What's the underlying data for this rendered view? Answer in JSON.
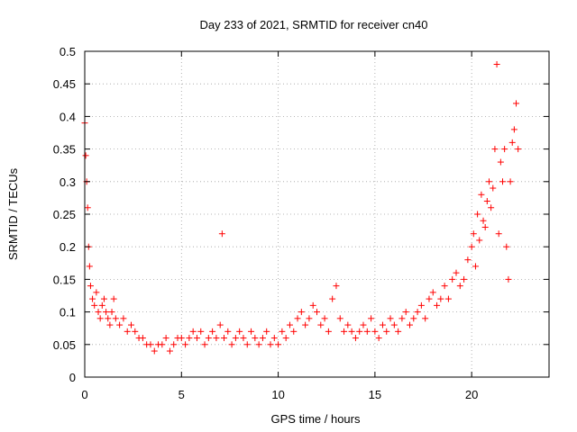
{
  "chart_data": {
    "type": "scatter",
    "title": "Day 233 of 2021, SRMTID for receiver cn40",
    "xlabel": "GPS time / hours",
    "ylabel": "SRMTID / TECUs",
    "xlim": [
      0,
      24
    ],
    "ylim": [
      0,
      0.5
    ],
    "xticks": [
      0,
      5,
      10,
      15,
      20
    ],
    "yticks": [
      0,
      0.05,
      0.1,
      0.15,
      0.2,
      0.25,
      0.3,
      0.35,
      0.4,
      0.45,
      0.5
    ],
    "grid": true,
    "marker": "plus",
    "color": "#ff0000",
    "series": [
      {
        "name": "SRMTID",
        "x": [
          0.0,
          0.05,
          0.1,
          0.15,
          0.2,
          0.25,
          0.3,
          0.4,
          0.5,
          0.6,
          0.7,
          0.8,
          0.9,
          1.0,
          1.1,
          1.2,
          1.3,
          1.4,
          1.5,
          1.6,
          1.8,
          2.0,
          2.2,
          2.4,
          2.6,
          2.8,
          3.0,
          3.2,
          3.4,
          3.6,
          3.8,
          4.0,
          4.2,
          4.4,
          4.6,
          4.8,
          5.0,
          5.2,
          5.4,
          5.6,
          5.8,
          6.0,
          6.2,
          6.4,
          6.6,
          6.8,
          7.0,
          7.1,
          7.2,
          7.4,
          7.6,
          7.8,
          8.0,
          8.2,
          8.4,
          8.6,
          8.8,
          9.0,
          9.2,
          9.4,
          9.6,
          9.8,
          10.0,
          10.2,
          10.4,
          10.6,
          10.8,
          11.0,
          11.2,
          11.4,
          11.6,
          11.8,
          12.0,
          12.2,
          12.4,
          12.6,
          12.8,
          13.0,
          13.2,
          13.4,
          13.6,
          13.8,
          14.0,
          14.2,
          14.4,
          14.6,
          14.8,
          15.0,
          15.2,
          15.4,
          15.6,
          15.8,
          16.0,
          16.2,
          16.4,
          16.6,
          16.8,
          17.0,
          17.2,
          17.4,
          17.6,
          17.8,
          18.0,
          18.2,
          18.4,
          18.6,
          18.8,
          19.0,
          19.2,
          19.4,
          19.6,
          19.8,
          20.0,
          20.1,
          20.2,
          20.3,
          20.4,
          20.5,
          20.6,
          20.7,
          20.8,
          20.9,
          21.0,
          21.1,
          21.2,
          21.3,
          21.4,
          21.5,
          21.6,
          21.7,
          21.8,
          21.9,
          22.0,
          22.1,
          22.2,
          22.3,
          22.4
        ],
        "y": [
          0.39,
          0.34,
          0.3,
          0.26,
          0.2,
          0.17,
          0.14,
          0.12,
          0.11,
          0.13,
          0.1,
          0.09,
          0.11,
          0.12,
          0.1,
          0.09,
          0.08,
          0.1,
          0.12,
          0.09,
          0.08,
          0.09,
          0.07,
          0.08,
          0.07,
          0.06,
          0.06,
          0.05,
          0.05,
          0.04,
          0.05,
          0.05,
          0.06,
          0.04,
          0.05,
          0.06,
          0.06,
          0.05,
          0.06,
          0.07,
          0.06,
          0.07,
          0.05,
          0.06,
          0.07,
          0.06,
          0.08,
          0.22,
          0.06,
          0.07,
          0.05,
          0.06,
          0.07,
          0.06,
          0.05,
          0.07,
          0.06,
          0.05,
          0.06,
          0.07,
          0.05,
          0.06,
          0.05,
          0.07,
          0.06,
          0.08,
          0.07,
          0.09,
          0.1,
          0.08,
          0.09,
          0.11,
          0.1,
          0.08,
          0.09,
          0.07,
          0.12,
          0.14,
          0.09,
          0.07,
          0.08,
          0.07,
          0.06,
          0.07,
          0.08,
          0.07,
          0.09,
          0.07,
          0.06,
          0.08,
          0.07,
          0.09,
          0.08,
          0.07,
          0.09,
          0.1,
          0.08,
          0.09,
          0.1,
          0.11,
          0.09,
          0.12,
          0.13,
          0.11,
          0.12,
          0.14,
          0.12,
          0.15,
          0.16,
          0.14,
          0.15,
          0.18,
          0.2,
          0.22,
          0.17,
          0.25,
          0.21,
          0.28,
          0.24,
          0.23,
          0.27,
          0.3,
          0.26,
          0.29,
          0.35,
          0.48,
          0.22,
          0.33,
          0.3,
          0.35,
          0.2,
          0.15,
          0.3,
          0.36,
          0.38,
          0.42,
          0.35
        ]
      }
    ]
  }
}
